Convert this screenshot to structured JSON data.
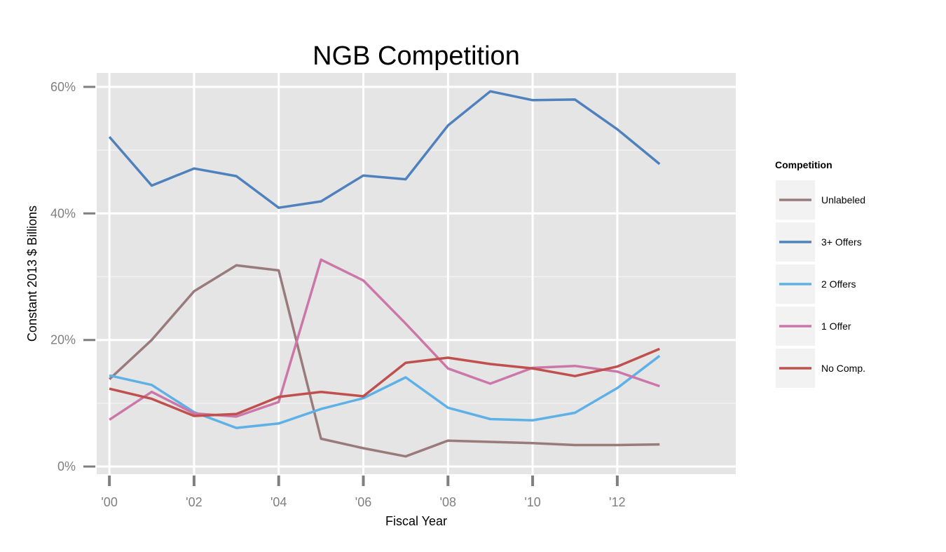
{
  "chart_data": {
    "type": "line",
    "title": "NGB Competition",
    "xlabel": "Fiscal Year",
    "ylabel": "Constant 2013 $ Billions",
    "x": [
      2000,
      2001,
      2002,
      2003,
      2004,
      2005,
      2006,
      2007,
      2008,
      2009,
      2010,
      2011,
      2012,
      2013
    ],
    "xlim": [
      1999.7,
      2014.8
    ],
    "ylim": [
      -1.2,
      62.2
    ],
    "x_ticks": [
      2000,
      2002,
      2004,
      2006,
      2008,
      2010,
      2012
    ],
    "x_tick_labels": [
      "'00",
      "'02",
      "'04",
      "'06",
      "'08",
      "'10",
      "'12"
    ],
    "y_ticks": [
      0,
      20,
      40,
      60
    ],
    "y_tick_labels": [
      "0%",
      "20%",
      "40%",
      "60%"
    ],
    "grid": true,
    "legend": {
      "title": "Competition",
      "position": "right"
    },
    "series": [
      {
        "name": "Unlabeled",
        "color": "#9a7b7b",
        "values": [
          13.8,
          20.0,
          27.7,
          31.8,
          31.0,
          4.4,
          2.9,
          1.6,
          4.1,
          3.9,
          3.7,
          3.4,
          3.4,
          3.5
        ]
      },
      {
        "name": "3+ Offers",
        "color": "#4f81bd",
        "values": [
          52.1,
          44.4,
          47.1,
          45.9,
          40.9,
          41.9,
          46.0,
          45.4,
          53.9,
          59.3,
          57.9,
          58.0,
          53.3,
          47.8
        ]
      },
      {
        "name": "2 Offers",
        "color": "#5eb1e6",
        "values": [
          14.4,
          12.9,
          8.6,
          6.1,
          6.8,
          9.1,
          10.8,
          14.1,
          9.3,
          7.5,
          7.3,
          8.5,
          12.4,
          17.5
        ]
      },
      {
        "name": "1 Offer",
        "color": "#cc77aa",
        "values": [
          7.4,
          11.8,
          8.4,
          7.9,
          10.2,
          32.7,
          29.4,
          22.6,
          15.5,
          13.1,
          15.6,
          15.9,
          15.0,
          12.7
        ]
      },
      {
        "name": "No Comp.",
        "color": "#c0504d",
        "values": [
          12.3,
          10.7,
          8.0,
          8.3,
          11.0,
          11.8,
          11.1,
          16.4,
          17.2,
          16.2,
          15.5,
          14.3,
          15.8,
          18.6
        ]
      }
    ]
  }
}
